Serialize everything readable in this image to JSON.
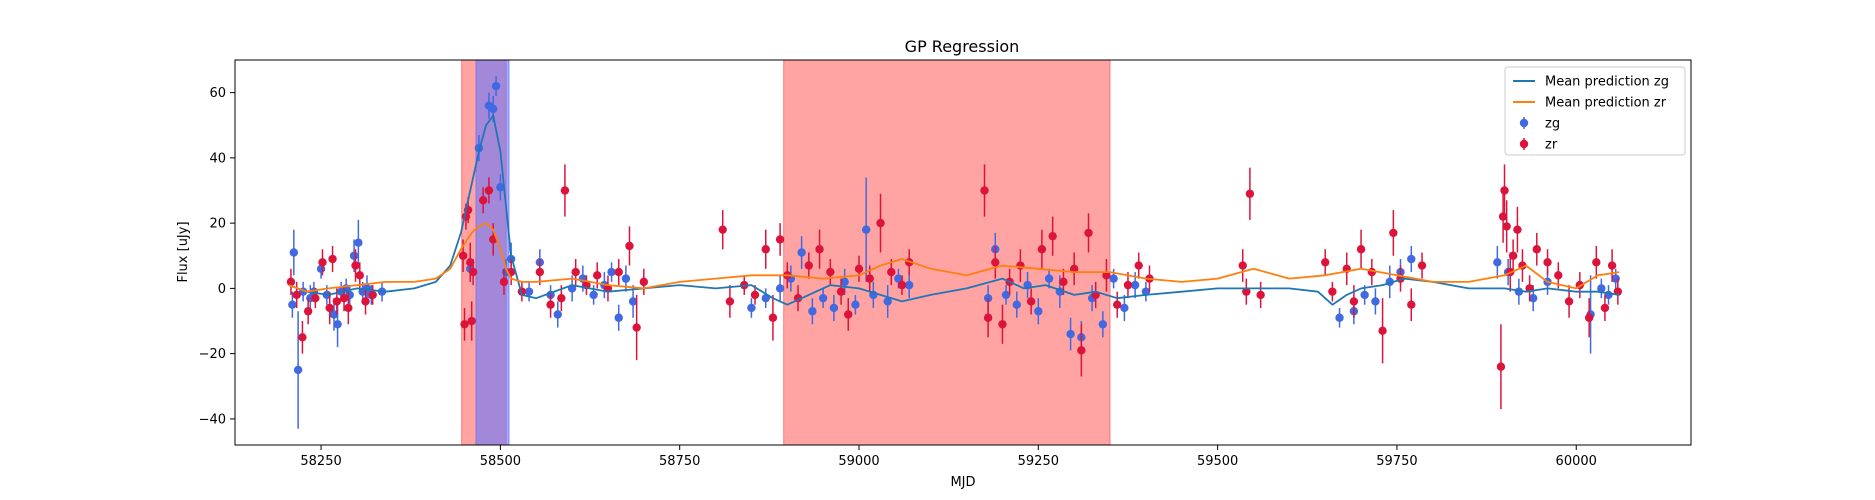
{
  "chart_data": {
    "type": "scatter",
    "title": "GP Regression",
    "xlabel": "MJD",
    "ylabel": "Flux [uJy]",
    "xlim": [
      58130,
      60160
    ],
    "ylim": [
      -48,
      70
    ],
    "xticks": [
      58250,
      58500,
      58750,
      59000,
      59250,
      59500,
      59750,
      60000
    ],
    "yticks": [
      -40,
      -20,
      0,
      20,
      40,
      60
    ],
    "grid": false,
    "legend_position": "top-right",
    "colors": {
      "zg_points": "#4169e1",
      "zr_points": "#dc143c",
      "zg_line": "#1f77b4",
      "zr_line": "#ff7f0e",
      "span_red": "#ff6666",
      "span_blue": "#6677ff"
    },
    "shaded_regions": [
      {
        "x0": 58446,
        "x1": 58508,
        "color": "red"
      },
      {
        "x0": 58466,
        "x1": 58512,
        "color": "blue"
      },
      {
        "x0": 58895,
        "x1": 59350,
        "color": "red"
      }
    ],
    "series": [
      {
        "name": "Mean prediction zg",
        "kind": "line",
        "x": [
          58205,
          58230,
          58260,
          58300,
          58340,
          58380,
          58410,
          58430,
          58445,
          58460,
          58470,
          58480,
          58490,
          58500,
          58508,
          58515,
          58530,
          58550,
          58600,
          58650,
          58700,
          58750,
          58800,
          58850,
          58880,
          58900,
          58930,
          58960,
          59000,
          59030,
          59060,
          59100,
          59150,
          59200,
          59230,
          59260,
          59300,
          59330,
          59360,
          59400,
          59450,
          59500,
          59550,
          59600,
          59640,
          59660,
          59680,
          59700,
          59730,
          59760,
          59800,
          59850,
          59900,
          59930,
          59960,
          60000,
          60030,
          60060
        ],
        "y": [
          1,
          -1,
          -2,
          0,
          -1,
          0,
          2,
          7,
          17,
          32,
          42,
          50,
          53,
          42,
          25,
          10,
          -2,
          -3,
          1,
          -1,
          0,
          1,
          0,
          1,
          -3,
          -5,
          -2,
          1,
          0,
          -2,
          -4,
          -2,
          0,
          3,
          0,
          1,
          -2,
          -1,
          -3,
          -2,
          -1,
          0,
          0,
          0,
          -1,
          -5,
          -2,
          0,
          1,
          3,
          2,
          0,
          0,
          -1,
          0,
          -1,
          -1,
          -2
        ]
      },
      {
        "name": "Mean prediction zr",
        "kind": "line",
        "x": [
          58205,
          58230,
          58260,
          58300,
          58340,
          58380,
          58410,
          58430,
          58445,
          58460,
          58470,
          58480,
          58490,
          58500,
          58508,
          58515,
          58530,
          58550,
          58600,
          58650,
          58700,
          58750,
          58800,
          58850,
          58900,
          58950,
          59000,
          59030,
          59060,
          59100,
          59150,
          59200,
          59250,
          59300,
          59350,
          59400,
          59450,
          59500,
          59550,
          59600,
          59650,
          59700,
          59750,
          59800,
          59850,
          59900,
          59930,
          59960,
          60000,
          60030,
          60060
        ],
        "y": [
          1,
          -1,
          0,
          1,
          2,
          2,
          3,
          6,
          12,
          17,
          19,
          20,
          18,
          12,
          6,
          3,
          2,
          2,
          3,
          1,
          0,
          2,
          3,
          4,
          4,
          3,
          4,
          7,
          9,
          6,
          4,
          7,
          6,
          5,
          5,
          3,
          2,
          3,
          6,
          3,
          4,
          6,
          4,
          2,
          2,
          4,
          7,
          2,
          0,
          4,
          5
        ]
      },
      {
        "name": "zg",
        "kind": "errorbar",
        "points": [
          [
            58210,
            -5,
            4
          ],
          [
            58212,
            11,
            7
          ],
          [
            58218,
            -25,
            18
          ],
          [
            58225,
            -1,
            3
          ],
          [
            58235,
            -3,
            4
          ],
          [
            58240,
            -1,
            3
          ],
          [
            58250,
            6,
            3
          ],
          [
            58258,
            -2,
            3
          ],
          [
            58268,
            -8,
            5
          ],
          [
            58273,
            -11,
            7
          ],
          [
            58278,
            -1,
            3
          ],
          [
            58285,
            0,
            3
          ],
          [
            58290,
            -2,
            3
          ],
          [
            58296,
            10,
            5
          ],
          [
            58302,
            14,
            7
          ],
          [
            58308,
            -1,
            3
          ],
          [
            58314,
            0,
            4
          ],
          [
            58320,
            -2,
            3
          ],
          [
            58335,
            -1,
            3
          ],
          [
            58458,
            6,
            4
          ],
          [
            58470,
            43,
            4
          ],
          [
            58484,
            56,
            4
          ],
          [
            58490,
            55,
            4
          ],
          [
            58494,
            62,
            3
          ],
          [
            58500,
            31,
            4
          ],
          [
            58508,
            5,
            4
          ],
          [
            58515,
            9,
            5
          ],
          [
            58540,
            -1,
            3
          ],
          [
            58555,
            8,
            4
          ],
          [
            58570,
            -2,
            3
          ],
          [
            58580,
            -8,
            4
          ],
          [
            58600,
            0,
            4
          ],
          [
            58615,
            3,
            4
          ],
          [
            58630,
            -2,
            3
          ],
          [
            58645,
            1,
            4
          ],
          [
            58655,
            5,
            3
          ],
          [
            58665,
            -9,
            4
          ],
          [
            58675,
            3,
            4
          ],
          [
            58685,
            -4,
            5
          ],
          [
            58850,
            -6,
            3
          ],
          [
            58870,
            -3,
            3
          ],
          [
            58890,
            0,
            4
          ],
          [
            58905,
            3,
            4
          ],
          [
            58920,
            11,
            5
          ],
          [
            58935,
            -7,
            4
          ],
          [
            58950,
            -3,
            3
          ],
          [
            58965,
            -6,
            4
          ],
          [
            58980,
            2,
            4
          ],
          [
            58995,
            -5,
            3
          ],
          [
            59010,
            18,
            16
          ],
          [
            59020,
            -2,
            4
          ],
          [
            59040,
            -4,
            5
          ],
          [
            59055,
            3,
            3
          ],
          [
            59070,
            1,
            4
          ],
          [
            59180,
            -3,
            4
          ],
          [
            59190,
            12,
            5
          ],
          [
            59205,
            -2,
            3
          ],
          [
            59220,
            -5,
            4
          ],
          [
            59235,
            1,
            4
          ],
          [
            59250,
            -7,
            4
          ],
          [
            59265,
            3,
            3
          ],
          [
            59280,
            -1,
            5
          ],
          [
            59295,
            -14,
            5
          ],
          [
            59310,
            -15,
            5
          ],
          [
            59325,
            -3,
            4
          ],
          [
            59340,
            -11,
            4
          ],
          [
            59355,
            3,
            3
          ],
          [
            59370,
            -6,
            4
          ],
          [
            59385,
            1,
            4
          ],
          [
            59400,
            -1,
            3
          ],
          [
            59670,
            -9,
            3
          ],
          [
            59690,
            -7,
            4
          ],
          [
            59705,
            -2,
            3
          ],
          [
            59720,
            -4,
            4
          ],
          [
            59740,
            2,
            5
          ],
          [
            59755,
            5,
            4
          ],
          [
            59770,
            9,
            4
          ],
          [
            59890,
            8,
            5
          ],
          [
            59905,
            5,
            4
          ],
          [
            59920,
            -1,
            4
          ],
          [
            59940,
            -3,
            4
          ],
          [
            59960,
            2,
            4
          ],
          [
            60020,
            -8,
            12
          ],
          [
            60035,
            0,
            3
          ],
          [
            60045,
            -2,
            3
          ],
          [
            60055,
            3,
            3
          ]
        ]
      },
      {
        "name": "zr",
        "kind": "errorbar",
        "points": [
          [
            58208,
            2,
            4
          ],
          [
            58216,
            -2,
            4
          ],
          [
            58224,
            -15,
            5
          ],
          [
            58232,
            -7,
            4
          ],
          [
            58242,
            -3,
            3
          ],
          [
            58252,
            8,
            4
          ],
          [
            58262,
            -6,
            5
          ],
          [
            58266,
            9,
            4
          ],
          [
            58272,
            -4,
            4
          ],
          [
            58282,
            -3,
            4
          ],
          [
            58288,
            -6,
            5
          ],
          [
            58298,
            7,
            5
          ],
          [
            58304,
            4,
            4
          ],
          [
            58312,
            -4,
            4
          ],
          [
            58322,
            -2,
            3
          ],
          [
            58448,
            10,
            5
          ],
          [
            58450,
            -11,
            5
          ],
          [
            58452,
            22,
            4
          ],
          [
            58455,
            24,
            4
          ],
          [
            58458,
            8,
            6
          ],
          [
            58460,
            -10,
            6
          ],
          [
            58462,
            5,
            4
          ],
          [
            58476,
            27,
            4
          ],
          [
            58484,
            30,
            4
          ],
          [
            58490,
            15,
            5
          ],
          [
            58505,
            2,
            4
          ],
          [
            58515,
            5,
            4
          ],
          [
            58530,
            -1,
            3
          ],
          [
            58555,
            5,
            4
          ],
          [
            58570,
            -5,
            4
          ],
          [
            58585,
            -3,
            4
          ],
          [
            58590,
            30,
            8
          ],
          [
            58605,
            5,
            4
          ],
          [
            58620,
            1,
            3
          ],
          [
            58635,
            4,
            4
          ],
          [
            58650,
            0,
            4
          ],
          [
            58665,
            5,
            4
          ],
          [
            58680,
            13,
            6
          ],
          [
            58690,
            -12,
            10
          ],
          [
            58700,
            2,
            4
          ],
          [
            58810,
            18,
            6
          ],
          [
            58820,
            -4,
            5
          ],
          [
            58840,
            1,
            3
          ],
          [
            58855,
            -2,
            3
          ],
          [
            58870,
            12,
            6
          ],
          [
            58880,
            -9,
            7
          ],
          [
            58890,
            15,
            5
          ],
          [
            58900,
            4,
            4
          ],
          [
            58915,
            -3,
            4
          ],
          [
            58930,
            7,
            4
          ],
          [
            58945,
            12,
            6
          ],
          [
            58960,
            5,
            4
          ],
          [
            58975,
            -1,
            4
          ],
          [
            58985,
            -8,
            5
          ],
          [
            59000,
            6,
            4
          ],
          [
            59015,
            3,
            4
          ],
          [
            59030,
            20,
            9
          ],
          [
            59045,
            5,
            4
          ],
          [
            59060,
            1,
            3
          ],
          [
            59070,
            8,
            4
          ],
          [
            59175,
            30,
            8
          ],
          [
            59180,
            -9,
            6
          ],
          [
            59190,
            8,
            5
          ],
          [
            59200,
            -11,
            6
          ],
          [
            59210,
            2,
            4
          ],
          [
            59225,
            7,
            5
          ],
          [
            59240,
            -4,
            4
          ],
          [
            59255,
            12,
            6
          ],
          [
            59270,
            16,
            6
          ],
          [
            59285,
            2,
            4
          ],
          [
            59300,
            6,
            5
          ],
          [
            59310,
            -19,
            8
          ],
          [
            59320,
            17,
            6
          ],
          [
            59330,
            -2,
            4
          ],
          [
            59345,
            4,
            5
          ],
          [
            59360,
            -5,
            4
          ],
          [
            59375,
            1,
            4
          ],
          [
            59390,
            7,
            4
          ],
          [
            59405,
            3,
            4
          ],
          [
            59535,
            7,
            5
          ],
          [
            59540,
            -1,
            4
          ],
          [
            59545,
            29,
            8
          ],
          [
            59560,
            -2,
            4
          ],
          [
            59650,
            8,
            4
          ],
          [
            59660,
            -1,
            3
          ],
          [
            59680,
            6,
            5
          ],
          [
            59690,
            -4,
            5
          ],
          [
            59700,
            12,
            6
          ],
          [
            59715,
            5,
            4
          ],
          [
            59730,
            -13,
            10
          ],
          [
            59745,
            17,
            7
          ],
          [
            59755,
            3,
            4
          ],
          [
            59770,
            -5,
            5
          ],
          [
            59785,
            7,
            4
          ],
          [
            59895,
            -24,
            13
          ],
          [
            59898,
            22,
            8
          ],
          [
            59900,
            30,
            8
          ],
          [
            59903,
            19,
            8
          ],
          [
            59908,
            5,
            6
          ],
          [
            59912,
            10,
            5
          ],
          [
            59918,
            18,
            7
          ],
          [
            59925,
            7,
            5
          ],
          [
            59935,
            0,
            4
          ],
          [
            59945,
            12,
            5
          ],
          [
            59960,
            8,
            4
          ],
          [
            59975,
            4,
            4
          ],
          [
            59990,
            -4,
            5
          ],
          [
            60005,
            1,
            4
          ],
          [
            60018,
            -9,
            6
          ],
          [
            60028,
            8,
            5
          ],
          [
            60040,
            -6,
            4
          ],
          [
            60050,
            7,
            5
          ],
          [
            60058,
            -1,
            4
          ]
        ]
      }
    ]
  },
  "legend": {
    "items": [
      {
        "label": "Mean prediction zg",
        "kind": "line",
        "color": "#1f77b4"
      },
      {
        "label": "Mean prediction zr",
        "kind": "line",
        "color": "#ff7f0e"
      },
      {
        "label": "zg",
        "kind": "marker",
        "color": "#4169e1"
      },
      {
        "label": "zr",
        "kind": "marker",
        "color": "#dc143c"
      }
    ]
  }
}
